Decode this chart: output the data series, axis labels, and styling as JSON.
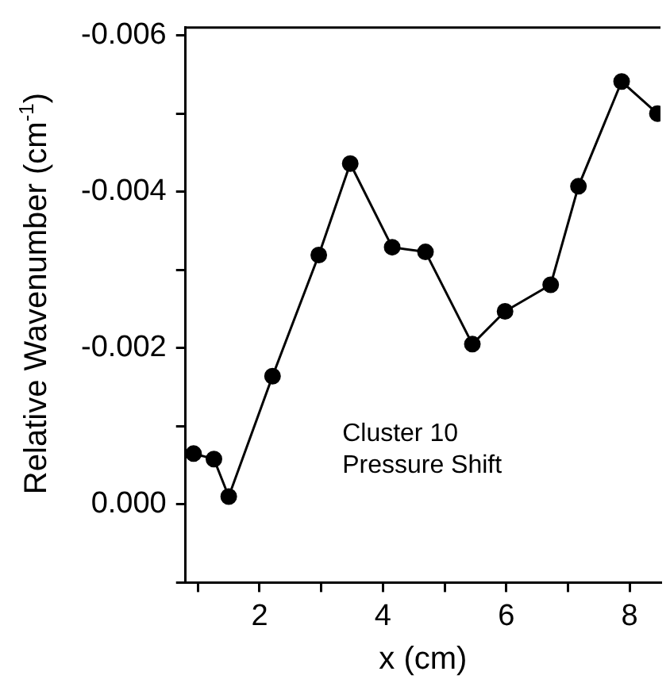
{
  "chart_data": {
    "type": "line",
    "xlabel": "x (cm)",
    "ylabel": "Relative Wavenumber (cm$^{-1}$)",
    "x": [
      0.93,
      1.26,
      1.5,
      2.21,
      2.96,
      3.47,
      4.15,
      4.69,
      5.45,
      5.98,
      6.72,
      7.17,
      7.87,
      8.45
    ],
    "series": [
      {
        "color": "#000000",
        "values": [
          -0.00065,
          -0.00058,
          -0.0001,
          -0.00164,
          -0.00319,
          -0.00436,
          -0.00329,
          -0.00323,
          -0.00205,
          -0.00247,
          -0.00281,
          -0.00407,
          -0.00541,
          -0.005
        ]
      }
    ],
    "xlim": [
      0.8,
      8.5
    ],
    "ylim": [
      0.001,
      -0.0061
    ],
    "xticks": [
      {
        "value": 1,
        "label": null
      },
      2,
      {
        "value": 3,
        "label": null
      },
      4,
      {
        "value": 5,
        "label": null
      },
      6,
      {
        "value": 7,
        "label": null
      },
      8
    ],
    "yticks": [
      {
        "value": 0.001,
        "label": null
      },
      {
        "value": 0,
        "label": "0.000"
      },
      {
        "value": -0.001,
        "label": null
      },
      {
        "value": -0.002,
        "label": "-0.002"
      },
      {
        "value": -0.003,
        "label": null
      },
      {
        "value": -0.004,
        "label": "-0.004"
      },
      {
        "value": -0.005,
        "label": null
      },
      {
        "value": -0.006,
        "label": "-0.006"
      }
    ],
    "annotations": [
      "Cluster 10\nPressure Shift"
    ],
    "marker": "circle",
    "line_style": "solid",
    "grid": false,
    "legend": false
  }
}
